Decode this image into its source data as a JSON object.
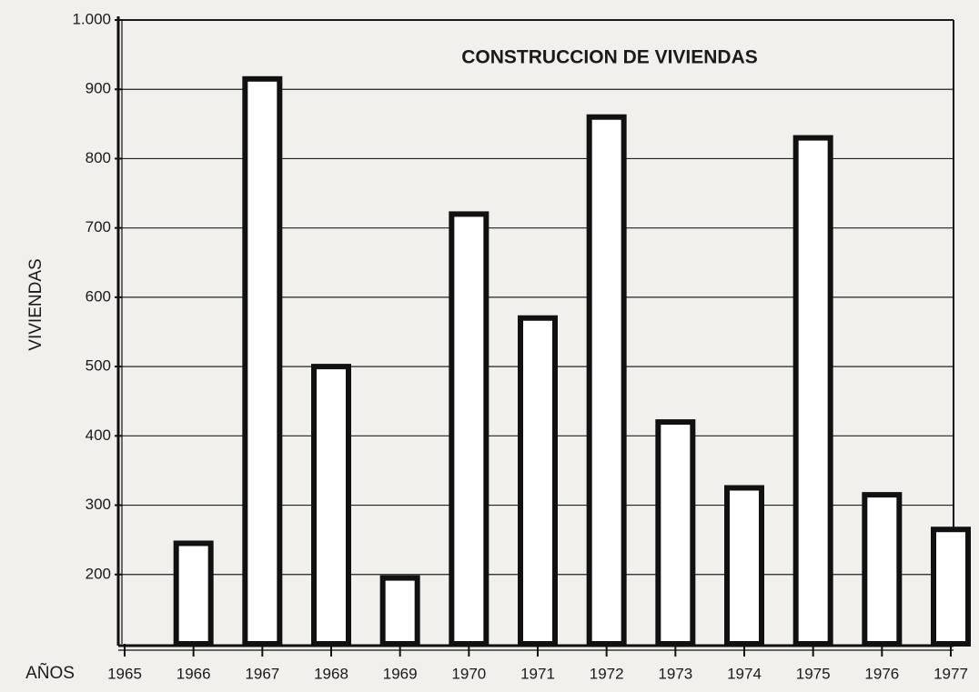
{
  "chart_data": {
    "type": "bar",
    "title": "CONSTRUCCION DE VIVIENDAS",
    "y_label": "VIVIENDAS",
    "x_label": "AÑOS",
    "categories": [
      "1965",
      "1966",
      "1967",
      "1968",
      "1969",
      "1970",
      "1971",
      "1972",
      "1973",
      "1974",
      "1975",
      "1976",
      "1977"
    ],
    "values": [
      null,
      245,
      915,
      500,
      195,
      720,
      570,
      860,
      420,
      325,
      830,
      315,
      265
    ],
    "color": "#ffffff",
    "ylim": [
      100,
      1000
    ],
    "yticks": [
      200,
      300,
      400,
      500,
      600,
      700,
      800,
      900,
      {
        "value": 1000,
        "label": "1.000"
      }
    ],
    "grid": true
  }
}
